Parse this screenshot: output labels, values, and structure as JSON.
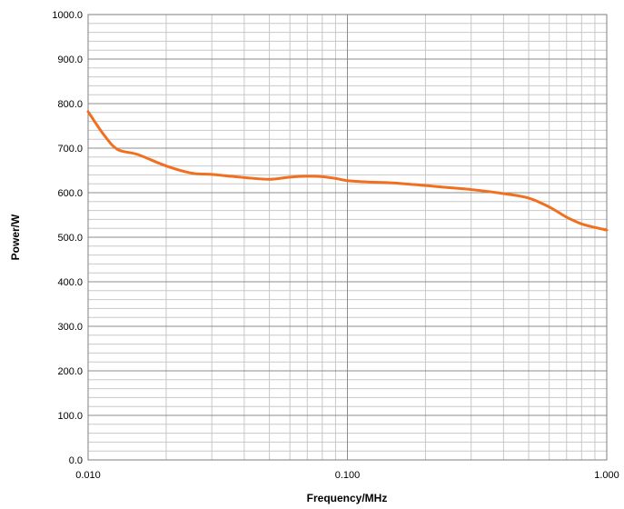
{
  "chart_data": {
    "type": "line",
    "title": "",
    "xlabel": "Frequency/MHz",
    "ylabel": "Power/W",
    "xscale": "log",
    "xlim": [
      0.01,
      1.0
    ],
    "ylim": [
      0,
      1000
    ],
    "grid": true,
    "legend": "none",
    "x_ticks": [
      "0.010",
      "0.100",
      "1.000"
    ],
    "y_ticks": [
      "0.0",
      "100.0",
      "200.0",
      "300.0",
      "400.0",
      "500.0",
      "600.0",
      "700.0",
      "800.0",
      "900.0",
      "1000.0"
    ],
    "series": [
      {
        "color": "#F07020",
        "x": [
          0.01,
          0.0115,
          0.013,
          0.0155,
          0.02,
          0.025,
          0.03,
          0.04,
          0.05,
          0.06,
          0.07,
          0.08,
          0.09,
          0.1,
          0.12,
          0.15,
          0.2,
          0.3,
          0.4,
          0.5,
          0.6,
          0.7,
          0.8,
          0.9,
          1.0
        ],
        "y": [
          782,
          730,
          697,
          686,
          660,
          644,
          641,
          634,
          630,
          635,
          637,
          636,
          632,
          627,
          624,
          622,
          616,
          607,
          598,
          588,
          568,
          545,
          530,
          522,
          516
        ]
      }
    ]
  }
}
